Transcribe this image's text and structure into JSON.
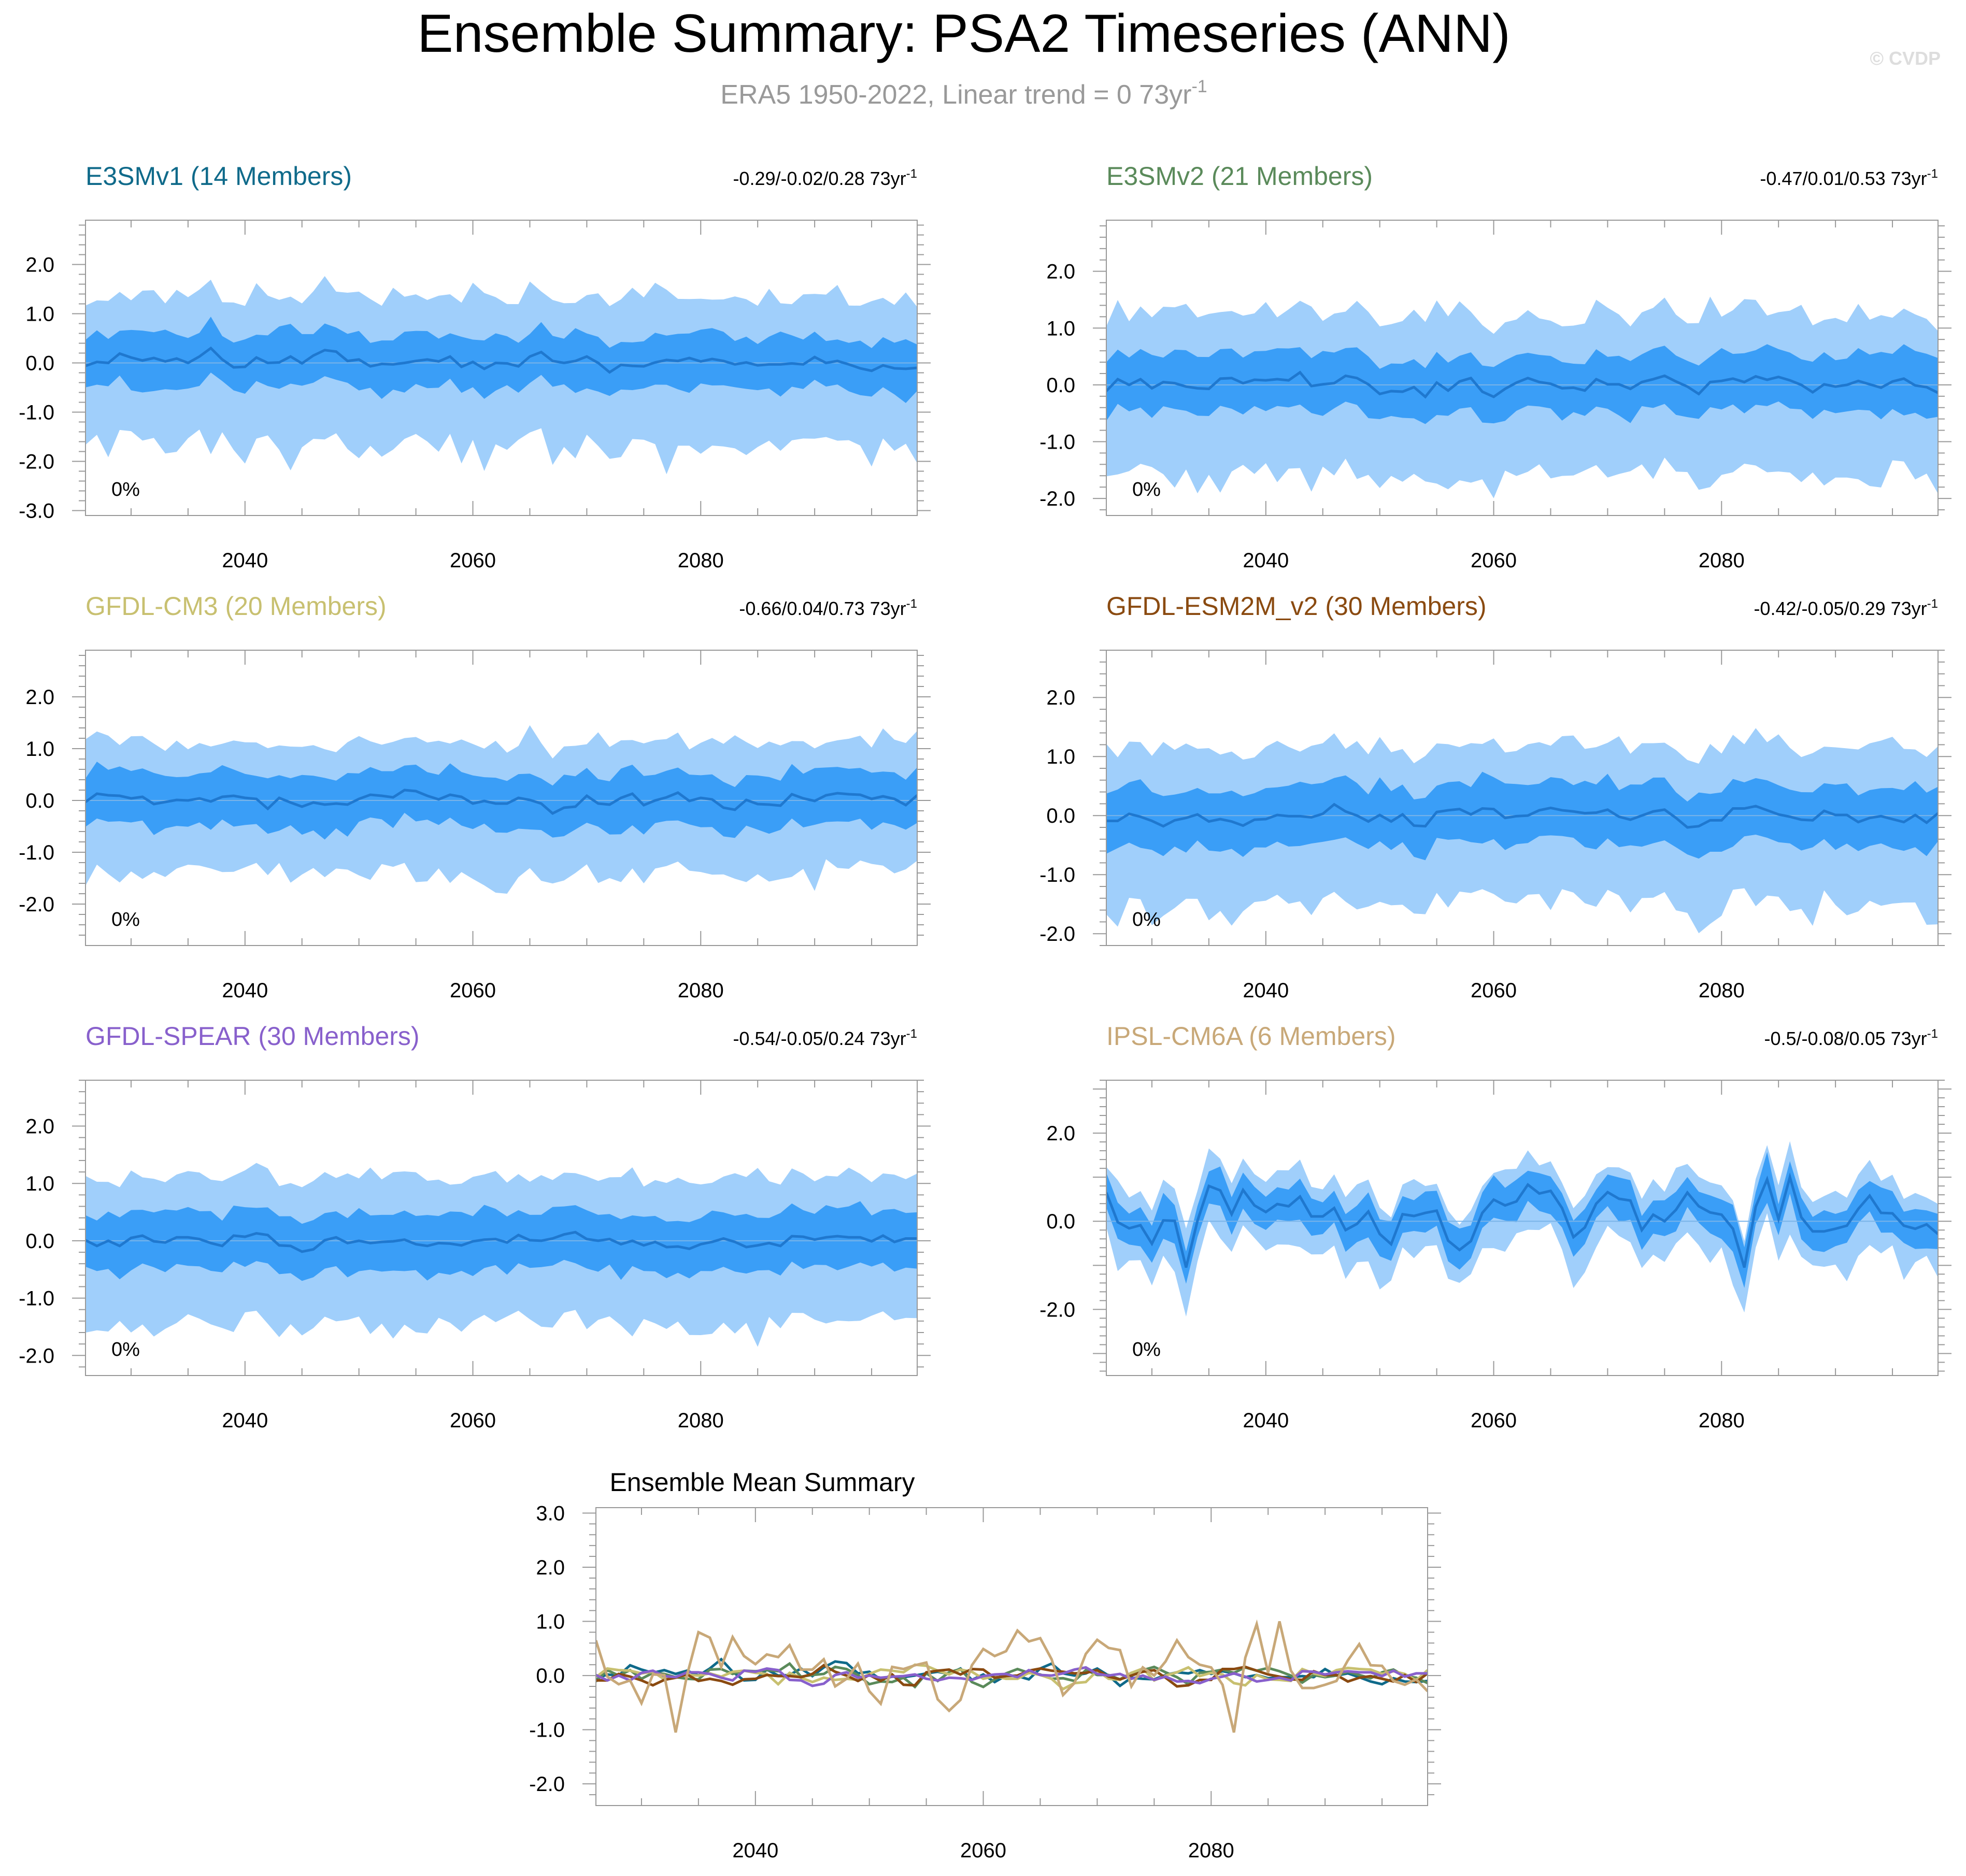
{
  "header": {
    "title": "Ensemble Summary: PSA2 Timeseries (ANN)",
    "subtitle_main": "ERA5 1950-2022, Linear trend = 0 73yr",
    "subtitle_sup": "-1",
    "watermark": "© CVDP"
  },
  "colors": {
    "outer_band": "#a0cffb",
    "inner_band": "#3a9ef7",
    "mean_line": "#1f78cf",
    "frame": "#999999",
    "title_text": "#000000",
    "subtitle_text": "#999999",
    "watermark_text": "#dddddd"
  },
  "chart_data": [
    {
      "id": "e3smv1",
      "type": "area",
      "title": "E3SMv1 (14 Members)",
      "title_color": "#0f6a8a",
      "trend_text": "-0.29/-0.02/0.28 73yr",
      "trend_sup": "-1",
      "percent_label": "0%",
      "xlim": [
        2026,
        2099
      ],
      "ylim": [
        -3.1,
        2.9
      ],
      "x_ticks": [
        "2040",
        "2060",
        "2080"
      ],
      "y_ticks": [
        "2.0",
        "1.0",
        "0.0",
        "-1.0",
        "-2.0",
        "-3.0"
      ],
      "seed": 11,
      "mean_amp": 0.12,
      "inner_half": 0.62,
      "outer_half": 1.55,
      "noise": 0.35
    },
    {
      "id": "e3smv2",
      "type": "area",
      "title": "E3SMv2 (21 Members)",
      "title_color": "#5a8a5a",
      "trend_text": "-0.47/0.01/0.53 73yr",
      "trend_sup": "-1",
      "percent_label": "0%",
      "xlim": [
        2026,
        2099
      ],
      "ylim": [
        -2.3,
        2.9
      ],
      "x_ticks": [
        "2040",
        "2060",
        "2080"
      ],
      "y_ticks": [
        "2.0",
        "1.0",
        "0.0",
        "-1.0",
        "-2.0"
      ],
      "seed": 23,
      "mean_amp": 0.12,
      "inner_half": 0.6,
      "outer_half": 1.45,
      "noise": 0.3
    },
    {
      "id": "gfdl_cm3",
      "type": "area",
      "title": "GFDL-CM3 (20 Members)",
      "title_color": "#c8c070",
      "trend_text": "-0.66/0.04/0.73 73yr",
      "trend_sup": "-1",
      "percent_label": "0%",
      "xlim": [
        2026,
        2099
      ],
      "ylim": [
        -2.8,
        2.9
      ],
      "x_ticks": [
        "2040",
        "2060",
        "2080"
      ],
      "y_ticks": [
        "2.0",
        "1.0",
        "0.0",
        "-1.0",
        "-2.0"
      ],
      "seed": 37,
      "mean_amp": 0.12,
      "inner_half": 0.62,
      "outer_half": 1.3,
      "noise": 0.3
    },
    {
      "id": "gfdl_esm2m",
      "type": "area",
      "title": "GFDL-ESM2M_v2 (30 Members)",
      "title_color": "#8a4a10",
      "trend_text": "-0.42/-0.05/0.29 73yr",
      "trend_sup": "-1",
      "percent_label": "0%",
      "xlim": [
        2026,
        2099
      ],
      "ylim": [
        -2.2,
        2.8
      ],
      "x_ticks": [
        "2040",
        "2060",
        "2080"
      ],
      "y_ticks": [
        "2.0",
        "1.0",
        "0.0",
        "-1.0",
        "-2.0"
      ],
      "seed": 41,
      "mean_amp": 0.1,
      "inner_half": 0.62,
      "outer_half": 1.4,
      "noise": 0.25
    },
    {
      "id": "gfdl_spear",
      "type": "area",
      "title": "GFDL-SPEAR (30 Members)",
      "title_color": "#8860cc",
      "trend_text": "-0.54/-0.05/0.24 73yr",
      "trend_sup": "-1",
      "percent_label": "0%",
      "xlim": [
        2026,
        2099
      ],
      "ylim": [
        -2.35,
        2.8
      ],
      "x_ticks": [
        "2040",
        "2060",
        "2080"
      ],
      "y_ticks": [
        "2.0",
        "1.0",
        "0.0",
        "-1.0",
        "-2.0"
      ],
      "seed": 53,
      "mean_amp": 0.08,
      "inner_half": 0.62,
      "outer_half": 1.35,
      "noise": 0.22
    },
    {
      "id": "ipsl_cm6a",
      "type": "area",
      "title": "IPSL-CM6A (6 Members)",
      "title_color": "#c8a878",
      "trend_text": "-0.5/-0.08/0.05 73yr",
      "trend_sup": "-1",
      "percent_label": "0%",
      "xlim": [
        2026,
        2099
      ],
      "ylim": [
        -3.5,
        3.2
      ],
      "x_ticks": [
        "2040",
        "2060",
        "2080"
      ],
      "y_ticks": [
        "2.0",
        "0.0",
        "-2.0"
      ],
      "seed": 67,
      "mean_amp": 0.45,
      "inner_half": 0.45,
      "outer_half": 0.75,
      "noise": 0.35
    },
    {
      "id": "ens_mean",
      "type": "line",
      "title": "Ensemble Mean Summary",
      "xlim": [
        2026,
        2099
      ],
      "ylim": [
        -2.4,
        3.1
      ],
      "x_ticks": [
        "2040",
        "2060",
        "2080"
      ],
      "y_ticks": [
        "3.0",
        "2.0",
        "1.0",
        "0.0",
        "-1.0",
        "-2.0"
      ],
      "series": [
        {
          "name": "E3SMv1",
          "color": "#0f6a8a",
          "seed": 11,
          "amp": 0.12
        },
        {
          "name": "E3SMv2",
          "color": "#5a8a5a",
          "seed": 23,
          "amp": 0.12
        },
        {
          "name": "GFDL-CM3",
          "color": "#c8c070",
          "seed": 37,
          "amp": 0.12
        },
        {
          "name": "GFDL-ESM2M_v2",
          "color": "#8a4a10",
          "seed": 41,
          "amp": 0.1
        },
        {
          "name": "GFDL-SPEAR",
          "color": "#8860cc",
          "seed": 53,
          "amp": 0.08
        },
        {
          "name": "IPSL-CM6A",
          "color": "#c8a878",
          "seed": 67,
          "amp": 0.45
        }
      ]
    }
  ]
}
